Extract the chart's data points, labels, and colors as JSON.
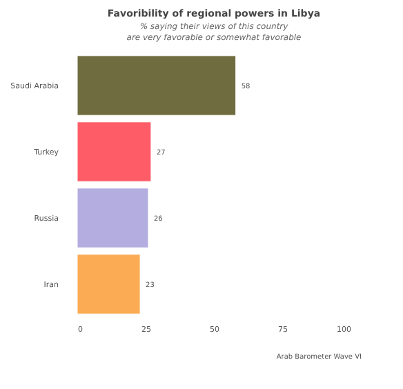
{
  "chart_data": {
    "type": "bar",
    "orientation": "horizontal",
    "title": "Favoribility of regional powers in Libya",
    "subtitle": "% saying their views of this country\nare very favorable or somewhat favorable",
    "categories": [
      "Saudi Arabia",
      "Turkey",
      "Russia",
      "Iran"
    ],
    "values": [
      58,
      27,
      26,
      23
    ],
    "colors": [
      "#6f6c3f",
      "#fe5c67",
      "#b4ade0",
      "#fbab53"
    ],
    "xlim": [
      0,
      100
    ],
    "xticks": [
      0,
      25,
      50,
      75,
      100
    ],
    "grid": false,
    "data_labels": true,
    "annotations": [
      "Arab Barometer Wave VI"
    ]
  }
}
